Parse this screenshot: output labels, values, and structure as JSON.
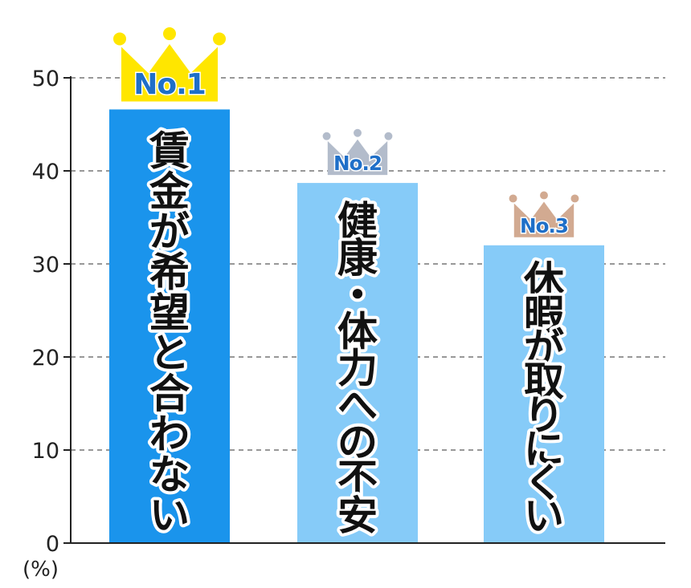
{
  "chart_data": {
    "type": "bar",
    "categories": [
      "賃金が希望と合わない",
      "健康・体力への不安",
      "休暇が取りにくい"
    ],
    "values": [
      46.6,
      38.7,
      32.0
    ],
    "ranks": [
      "No.1",
      "No.2",
      "No.3"
    ],
    "yticks": [
      "0",
      "10",
      "20",
      "30",
      "40",
      "50"
    ],
    "ylim": [
      0,
      50
    ],
    "unit": "(%)",
    "grid": true,
    "colors": {
      "highlight_bar": "#1a94ec",
      "bar": "#86cbf8",
      "crown_gold": "#ffe600",
      "crown_silver": "#b3bccb",
      "crown_bronze": "#d2aa91",
      "grid": "#777777",
      "axis": "#222222"
    }
  }
}
